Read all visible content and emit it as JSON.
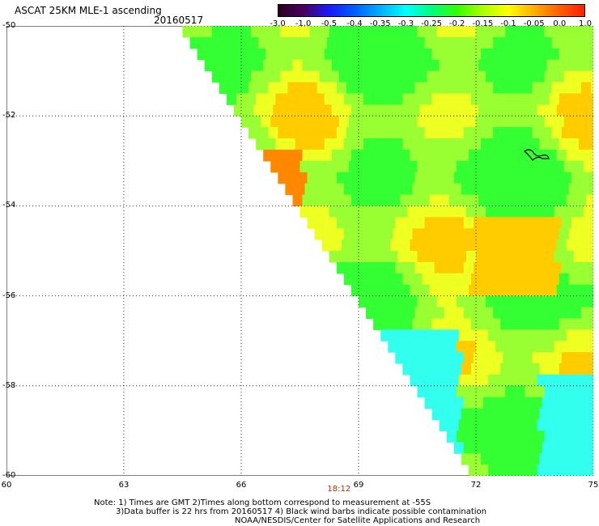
{
  "header": {
    "title": "ASCAT 25KM MLE-1 ascending",
    "date": "20160517"
  },
  "colorbar": {
    "colors": [
      "#2a0020",
      "#4a0060",
      "#1a1aff",
      "#0060ff",
      "#00b0ff",
      "#00ffff",
      "#00ff80",
      "#33ff00",
      "#aaff00",
      "#ffff00",
      "#ffb000",
      "#ff6000",
      "#ff2000"
    ],
    "labels": [
      "-3.0",
      "-1.0",
      "-0.5",
      "-0.4",
      "-0.35",
      "-0.3",
      "-0.25",
      "-0.2",
      "-0.15",
      "-0.1",
      "-0.05",
      "0.0",
      "1.0"
    ]
  },
  "map": {
    "lon_range": [
      60,
      75
    ],
    "lat_range": [
      -60,
      -50
    ],
    "x_ticks": [
      "60",
      "63",
      "66",
      "69",
      "72",
      "75"
    ],
    "y_ticks": [
      "-50",
      "-52",
      "-54",
      "-56",
      "-58",
      "-60"
    ],
    "swath_edge": [
      [
        64.5,
        -50
      ],
      [
        66,
        -52
      ],
      [
        67.5,
        -54
      ],
      [
        69,
        -56
      ],
      [
        70.5,
        -58
      ],
      [
        72,
        -60
      ]
    ],
    "time_label": "18:12",
    "grid": "dotted",
    "palette": {
      "cyan": "#33ffee",
      "green": "#33ff33",
      "lightgreen": "#99ff33",
      "yellow": "#eeff22",
      "gold": "#ffcc00",
      "orange": "#ff8800"
    }
  },
  "notes": {
    "line1": "Note: 1) Times are GMT 2)Times along bottom correspond to measurement at -55S",
    "line2": "3)Data buffer is 22 hrs from 20160517 4) Black wind barbs indicate possible contamination",
    "line3": "NOAA/NESDIS/Center for Satellite Applications and Research"
  }
}
